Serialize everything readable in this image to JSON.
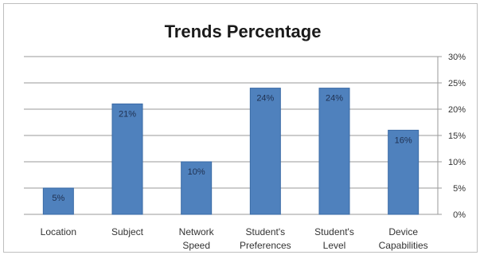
{
  "chart_data": {
    "type": "bar",
    "title": "Trends Percentage",
    "categories": [
      "Location",
      "Subject",
      "Network Speed",
      "Student's Preferences",
      "Student's Level",
      "Device Capabilities"
    ],
    "category_lines": [
      [
        "Location"
      ],
      [
        "Subject"
      ],
      [
        "Network",
        "Speed"
      ],
      [
        "Student's",
        "Preferences"
      ],
      [
        "Student's",
        "Level"
      ],
      [
        "Device",
        "Capabilities"
      ]
    ],
    "values": [
      5,
      21,
      10,
      24,
      24,
      16
    ],
    "data_labels": [
      "5%",
      "21%",
      "10%",
      "24%",
      "24%",
      "16%"
    ],
    "y_ticks": [
      "0%",
      "5%",
      "10%",
      "15%",
      "20%",
      "25%",
      "30%"
    ],
    "ylim": [
      0,
      30
    ],
    "y_axis_side": "right",
    "grid": true,
    "legend": "none",
    "bar_color": "#4f81bd",
    "bar_edge_color": "#3a6aa5",
    "grid_color": "#9a9a9a"
  }
}
